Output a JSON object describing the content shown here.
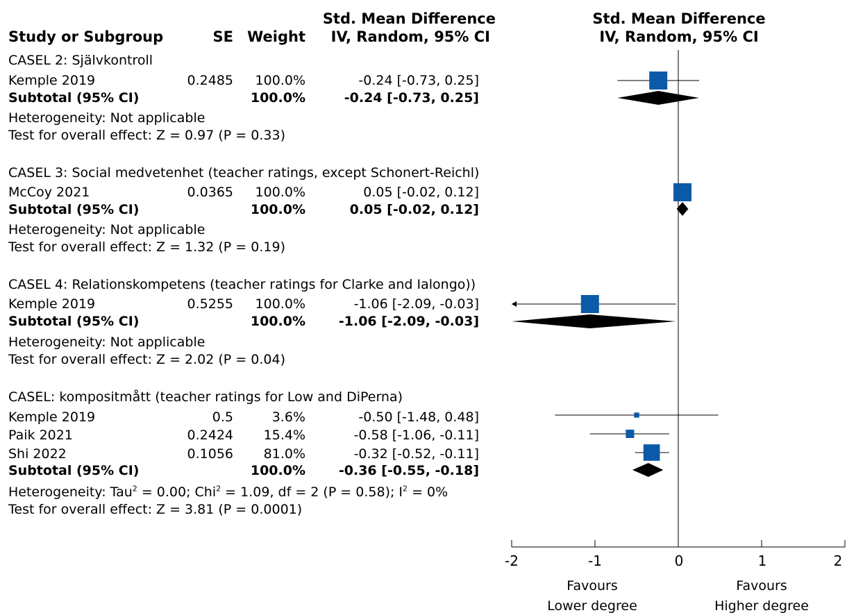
{
  "header": {
    "study": "Study or Subgroup",
    "se": "SE",
    "weight": "Weight",
    "smd_line1": "Std. Mean Difference",
    "smd_line2": "IV, Random, 95% CI",
    "plot_line1": "Std. Mean Difference",
    "plot_line2": "IV, Random, 95% CI"
  },
  "groups": [
    {
      "title": "CASEL 2: Självkontroll",
      "studies": [
        {
          "name": "Kemple 2019",
          "se": "0.2485",
          "weight": "100.0%",
          "ci_text": "-0.24 [-0.73, 0.25]"
        }
      ],
      "subtotal": {
        "label": "Subtotal (95% CI)",
        "weight": "100.0%",
        "ci_text": "-0.24 [-0.73, 0.25]"
      },
      "heterogeneity": "Heterogeneity: Not applicable",
      "overall": "Test for overall effect: Z = 0.97 (P = 0.33)"
    },
    {
      "title": "CASEL 3: Social medvetenhet (teacher ratings, except Schonert-Reichl)",
      "studies": [
        {
          "name": "McCoy 2021",
          "se": "0.0365",
          "weight": "100.0%",
          "ci_text": "0.05 [-0.02, 0.12]"
        }
      ],
      "subtotal": {
        "label": "Subtotal (95% CI)",
        "weight": "100.0%",
        "ci_text": "0.05 [-0.02, 0.12]"
      },
      "heterogeneity": "Heterogeneity: Not applicable",
      "overall": "Test for overall effect: Z = 1.32 (P = 0.19)"
    },
    {
      "title": "CASEL 4: Relationskompetens (teacher ratings for Clarke and Ialongo))",
      "studies": [
        {
          "name": "Kemple 2019",
          "se": "0.5255",
          "weight": "100.0%",
          "ci_text": "-1.06 [-2.09, -0.03]"
        }
      ],
      "subtotal": {
        "label": "Subtotal (95% CI)",
        "weight": "100.0%",
        "ci_text": "-1.06 [-2.09, -0.03]"
      },
      "heterogeneity": "Heterogeneity: Not applicable",
      "overall": "Test for overall effect: Z = 2.02 (P = 0.04)"
    },
    {
      "title": "CASEL: kompositmått (teacher ratings for Low and DiPerna)",
      "studies": [
        {
          "name": "Kemple 2019",
          "se": "0.5",
          "weight": "3.6%",
          "ci_text": "-0.50 [-1.48, 0.48]"
        },
        {
          "name": "Paik 2021",
          "se": "0.2424",
          "weight": "15.4%",
          "ci_text": "-0.58 [-1.06, -0.11]"
        },
        {
          "name": "Shi 2022",
          "se": "0.1056",
          "weight": "81.0%",
          "ci_text": "-0.32 [-0.52, -0.11]"
        }
      ],
      "subtotal": {
        "label": "Subtotal (95% CI)",
        "weight": "100.0%",
        "ci_text": "-0.36 [-0.55, -0.18]"
      },
      "heterogeneity_parts": {
        "p1": "Heterogeneity: Tau",
        "sup1": "2",
        "p2": " = 0.00; Chi",
        "sup2": "2",
        "p3": " = 1.09, df = 2 (P = 0.58); I",
        "sup3": "2",
        "p4": " = 0%"
      },
      "overall": "Test for overall effect: Z = 3.81 (P = 0.0001)"
    }
  ],
  "axis": {
    "ticks": [
      "-2",
      "-1",
      "0",
      "1",
      "2"
    ],
    "favours_left_1": "Favours",
    "favours_left_2": "Lower degree",
    "favours_right_1": "Favours",
    "favours_right_2": "Higher degree"
  },
  "colors": {
    "study_square": "#0b5aa8",
    "diamond": "#000000",
    "lines": "#000000"
  },
  "chart_data": {
    "type": "forest",
    "xlim": [
      -2,
      2
    ],
    "ticks": [
      -2,
      -1,
      0,
      1,
      2
    ],
    "study_marks": [
      {
        "group": 0,
        "name": "Kemple 2019",
        "est": -0.24,
        "lo": -0.73,
        "hi": 0.25,
        "weight": 100.0,
        "arrow_left": false
      },
      {
        "group": 1,
        "name": "McCoy 2021",
        "est": 0.05,
        "lo": -0.02,
        "hi": 0.12,
        "weight": 100.0,
        "arrow_left": false
      },
      {
        "group": 2,
        "name": "Kemple 2019",
        "est": -1.06,
        "lo": -2.09,
        "hi": -0.03,
        "weight": 100.0,
        "arrow_left": true
      },
      {
        "group": 3,
        "name": "Kemple 2019",
        "est": -0.5,
        "lo": -1.48,
        "hi": 0.48,
        "weight": 3.6,
        "arrow_left": false
      },
      {
        "group": 3,
        "name": "Paik 2021",
        "est": -0.58,
        "lo": -1.06,
        "hi": -0.11,
        "weight": 15.4,
        "arrow_left": false
      },
      {
        "group": 3,
        "name": "Shi 2022",
        "est": -0.32,
        "lo": -0.52,
        "hi": -0.11,
        "weight": 81.0,
        "arrow_left": false
      }
    ],
    "subtotals": [
      {
        "group": 0,
        "est": -0.24,
        "lo": -0.73,
        "hi": 0.25
      },
      {
        "group": 1,
        "est": 0.05,
        "lo": -0.02,
        "hi": 0.12
      },
      {
        "group": 2,
        "est": -1.06,
        "lo": -2.09,
        "hi": -0.03
      },
      {
        "group": 3,
        "est": -0.36,
        "lo": -0.55,
        "hi": -0.18
      }
    ]
  }
}
